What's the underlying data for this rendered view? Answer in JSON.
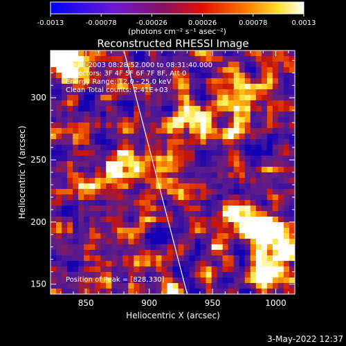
{
  "colorbar": {
    "ticks": [
      "-0.0013",
      "-0.00078",
      "-0.00026",
      "0.00026",
      "0.00078",
      "0.0013"
    ],
    "unit_text": "(photons cm⁻² s⁻¹ asec⁻²)",
    "range": [
      -0.0013,
      0.0013
    ]
  },
  "chart_data": {
    "type": "heatmap",
    "title": "Reconstructed RHESSI Image",
    "xlabel": "Heliocentric X (arcsec)",
    "ylabel": "Heliocentric Y (arcsec)",
    "xlim": [
      822,
      1015
    ],
    "ylim": [
      142,
      338
    ],
    "xticks": [
      850,
      900,
      950,
      1000
    ],
    "yticks": [
      150,
      200,
      250,
      300
    ],
    "colormap": "blue-purple-red-yellow-white",
    "limb_line": {
      "x": [
        880,
        930
      ],
      "y": [
        338,
        142
      ]
    },
    "peak": {
      "x": 828,
      "y": 330
    },
    "annotations": [
      "10-Jul-2003 08:28:52.000 to 08:31:40.000",
      "Detectors: 3F 4F 5F 6F 7F 8F, Att 0",
      "Energy Range: 12.0 - 25.0 keV",
      "Clean    Total counts: 2.41E+03"
    ],
    "peak_label": "Position of Peak = [828,330]"
  },
  "timestamp": "3-May-2022 12:37"
}
